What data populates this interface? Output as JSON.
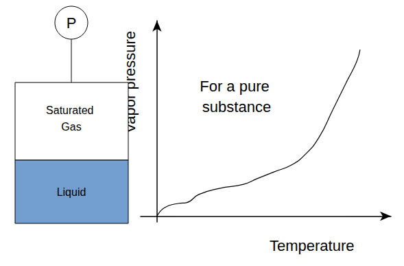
{
  "chart_data": {
    "type": "line",
    "y_label": "Vapor pressure",
    "x_label": "Temperature",
    "annotations": [
      "For a pure substance"
    ],
    "x": [
      0,
      3.3,
      9.1,
      12.6,
      17.9,
      26.7,
      37.0,
      42.8,
      50.2,
      57.5,
      63.3,
      69.2,
      75.1,
      80.9,
      85.3,
      86.8
    ],
    "values": [
      0,
      4.4,
      6.5,
      6.9,
      11.1,
      14.2,
      16.3,
      19.2,
      22.7,
      26.2,
      31.5,
      40.2,
      54.3,
      68.4,
      78.9,
      85.2
    ],
    "xlim": [
      -7,
      100
    ],
    "ylim": [
      -3,
      100
    ],
    "tick_labels": false,
    "grid": false,
    "color": "#000000",
    "line_style": "solid",
    "marker": "none"
  },
  "diagram": {
    "gauge": "P",
    "gas": "Saturated Gas",
    "liquid": "Liquid"
  }
}
